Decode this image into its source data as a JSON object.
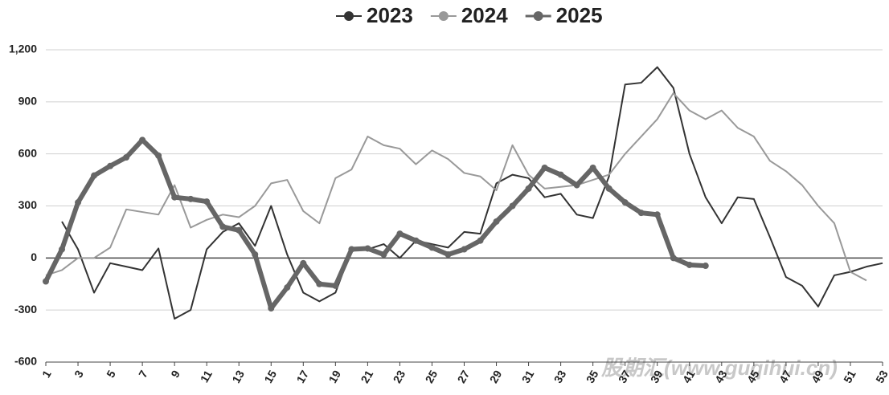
{
  "chart_data": {
    "type": "line",
    "x": [
      1,
      2,
      3,
      4,
      5,
      6,
      7,
      8,
      9,
      10,
      11,
      12,
      13,
      14,
      15,
      16,
      17,
      18,
      19,
      20,
      21,
      22,
      23,
      24,
      25,
      26,
      27,
      28,
      29,
      30,
      31,
      32,
      33,
      34,
      35,
      36,
      37,
      38,
      39,
      40,
      41,
      42,
      43,
      44,
      45,
      46,
      47,
      48,
      49,
      50,
      51,
      52,
      53
    ],
    "xlim": [
      1,
      53
    ],
    "xticks": [
      1,
      3,
      5,
      7,
      9,
      11,
      13,
      15,
      17,
      19,
      21,
      23,
      25,
      27,
      29,
      31,
      33,
      35,
      37,
      39,
      41,
      43,
      45,
      47,
      49,
      51,
      53
    ],
    "ylim": [
      -600,
      1200
    ],
    "yticks": [
      {
        "value": -600,
        "label": "-600"
      },
      {
        "value": -300,
        "label": "-300"
      },
      0,
      300,
      600,
      900,
      {
        "value": 1200,
        "label": "1,200"
      }
    ],
    "grid": true,
    "legend": "top",
    "watermark": "股期汇(www.guqihui.cn)",
    "series": [
      {
        "name": "2023",
        "color": "#333333",
        "width": 2,
        "markers": false,
        "values": [
          null,
          210,
          50,
          -200,
          -30,
          -50,
          -70,
          55,
          -350,
          -300,
          50,
          150,
          200,
          70,
          300,
          20,
          -200,
          -250,
          -200,
          50,
          50,
          80,
          0,
          100,
          80,
          60,
          150,
          140,
          430,
          480,
          460,
          350,
          370,
          250,
          230,
          470,
          1000,
          1010,
          1100,
          980,
          600,
          350,
          200,
          350,
          340,
          120,
          -110,
          -160,
          -280,
          -100,
          -80,
          -50,
          -30
        ]
      },
      {
        "name": "2024",
        "color": "#999999",
        "width": 2,
        "markers": false,
        "values": [
          -100,
          -70,
          0,
          0,
          60,
          280,
          265,
          250,
          420,
          175,
          220,
          250,
          235,
          300,
          430,
          450,
          270,
          200,
          460,
          510,
          700,
          650,
          630,
          540,
          620,
          570,
          490,
          470,
          390,
          650,
          480,
          400,
          410,
          420,
          450,
          480,
          600,
          700,
          800,
          950,
          850,
          800,
          850,
          750,
          700,
          560,
          500,
          420,
          300,
          200,
          -80,
          -130,
          null
        ]
      },
      {
        "name": "2025",
        "color": "#666666",
        "width": 6,
        "markers": true,
        "values": [
          -135,
          50,
          320,
          475,
          530,
          580,
          680,
          590,
          350,
          340,
          325,
          180,
          160,
          20,
          -290,
          -170,
          -30,
          -150,
          -160,
          50,
          55,
          20,
          140,
          100,
          60,
          20,
          50,
          100,
          210,
          300,
          400,
          520,
          480,
          420,
          520,
          400,
          320,
          260,
          250,
          0,
          -40,
          -45,
          null,
          null,
          null,
          null,
          null,
          null,
          null,
          null,
          null,
          null,
          null
        ]
      }
    ]
  }
}
